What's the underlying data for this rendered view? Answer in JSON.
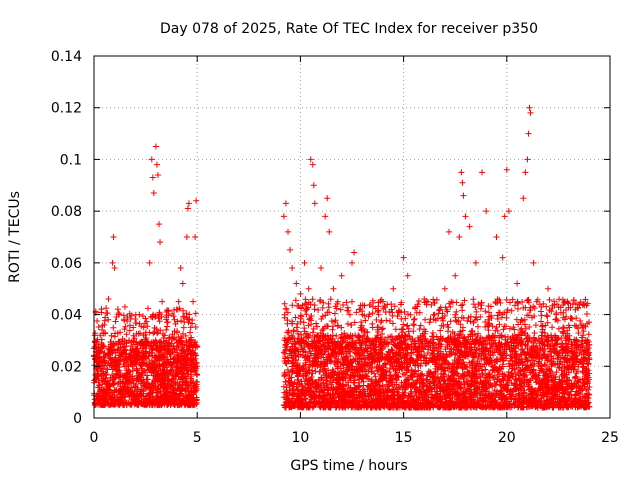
{
  "chart_data": {
    "type": "scatter",
    "title": "Day 078 of 2025, Rate Of TEC Index for receiver p350",
    "xlabel": "GPS time / hours",
    "ylabel": "ROTI / TECUs",
    "xlim": [
      0,
      25
    ],
    "ylim": [
      0,
      0.14
    ],
    "xticks": [
      0,
      5,
      10,
      15,
      20,
      25
    ],
    "xtick_labels": [
      "0",
      "5",
      "10",
      "15",
      "20",
      "25"
    ],
    "yticks": [
      0,
      0.02,
      0.04,
      0.06,
      0.08,
      0.1,
      0.12,
      0.14
    ],
    "ytick_labels": [
      "0",
      "0.02",
      "0.04",
      "0.06",
      "0.08",
      "0.1",
      "0.12",
      "0.14"
    ],
    "grid": true,
    "marker": "plus",
    "color": "#ff0000",
    "data_gap_hours": [
      5.0,
      9.2
    ],
    "series": [
      {
        "name": "ROTI",
        "points": [
          [
            0.1,
            0.015
          ],
          [
            0.2,
            0.022
          ],
          [
            0.3,
            0.032
          ],
          [
            0.4,
            0.018
          ],
          [
            0.5,
            0.036
          ],
          [
            0.6,
            0.012
          ],
          [
            0.7,
            0.046
          ],
          [
            0.8,
            0.026
          ],
          [
            0.9,
            0.06
          ],
          [
            0.95,
            0.07
          ],
          [
            1.0,
            0.058
          ],
          [
            1.1,
            0.02
          ],
          [
            1.2,
            0.04
          ],
          [
            1.3,
            0.014
          ],
          [
            1.5,
            0.043
          ],
          [
            1.7,
            0.03
          ],
          [
            1.9,
            0.035
          ],
          [
            2.0,
            0.012
          ],
          [
            2.2,
            0.04
          ],
          [
            2.4,
            0.028
          ],
          [
            2.6,
            0.02
          ],
          [
            2.7,
            0.06
          ],
          [
            2.8,
            0.1
          ],
          [
            2.85,
            0.093
          ],
          [
            2.9,
            0.087
          ],
          [
            3.0,
            0.105
          ],
          [
            3.05,
            0.098
          ],
          [
            3.1,
            0.094
          ],
          [
            3.15,
            0.075
          ],
          [
            3.2,
            0.068
          ],
          [
            3.3,
            0.045
          ],
          [
            3.5,
            0.03
          ],
          [
            3.7,
            0.025
          ],
          [
            3.9,
            0.038
          ],
          [
            4.1,
            0.045
          ],
          [
            4.2,
            0.058
          ],
          [
            4.3,
            0.052
          ],
          [
            4.5,
            0.07
          ],
          [
            4.55,
            0.081
          ],
          [
            4.6,
            0.083
          ],
          [
            4.7,
            0.03
          ],
          [
            4.8,
            0.045
          ],
          [
            4.9,
            0.07
          ],
          [
            4.95,
            0.084
          ],
          [
            5.0,
            0.02
          ],
          [
            9.2,
            0.078
          ],
          [
            9.3,
            0.083
          ],
          [
            9.4,
            0.072
          ],
          [
            9.5,
            0.065
          ],
          [
            9.6,
            0.058
          ],
          [
            9.8,
            0.052
          ],
          [
            10.0,
            0.048
          ],
          [
            10.2,
            0.06
          ],
          [
            10.4,
            0.05
          ],
          [
            10.5,
            0.1
          ],
          [
            10.6,
            0.098
          ],
          [
            10.65,
            0.09
          ],
          [
            10.7,
            0.083
          ],
          [
            11.0,
            0.058
          ],
          [
            11.2,
            0.078
          ],
          [
            11.3,
            0.085
          ],
          [
            11.4,
            0.072
          ],
          [
            11.6,
            0.05
          ],
          [
            12.0,
            0.055
          ],
          [
            12.4,
            0.04
          ],
          [
            12.5,
            0.06
          ],
          [
            12.6,
            0.064
          ],
          [
            13.0,
            0.04
          ],
          [
            13.5,
            0.035
          ],
          [
            14.0,
            0.045
          ],
          [
            14.5,
            0.05
          ],
          [
            15.0,
            0.062
          ],
          [
            15.2,
            0.055
          ],
          [
            15.5,
            0.038
          ],
          [
            16.0,
            0.046
          ],
          [
            16.5,
            0.04
          ],
          [
            17.0,
            0.05
          ],
          [
            17.2,
            0.072
          ],
          [
            17.5,
            0.055
          ],
          [
            17.7,
            0.07
          ],
          [
            17.8,
            0.095
          ],
          [
            17.85,
            0.091
          ],
          [
            17.9,
            0.086
          ],
          [
            18.0,
            0.078
          ],
          [
            18.2,
            0.074
          ],
          [
            18.5,
            0.06
          ],
          [
            18.8,
            0.095
          ],
          [
            19.0,
            0.08
          ],
          [
            19.5,
            0.07
          ],
          [
            19.8,
            0.062
          ],
          [
            19.9,
            0.078
          ],
          [
            20.0,
            0.096
          ],
          [
            20.1,
            0.08
          ],
          [
            20.5,
            0.052
          ],
          [
            20.8,
            0.085
          ],
          [
            20.9,
            0.095
          ],
          [
            21.0,
            0.1
          ],
          [
            21.05,
            0.11
          ],
          [
            21.1,
            0.12
          ],
          [
            21.15,
            0.118
          ],
          [
            21.3,
            0.06
          ],
          [
            21.6,
            0.044
          ],
          [
            22.0,
            0.05
          ],
          [
            22.4,
            0.04
          ],
          [
            22.8,
            0.045
          ],
          [
            23.2,
            0.044
          ],
          [
            23.6,
            0.036
          ],
          [
            24.0,
            0.012
          ]
        ],
        "dense_band": [
          {
            "from": 0.0,
            "to": 5.0,
            "low": 0.005,
            "high": 0.03
          },
          {
            "from": 9.2,
            "to": 24.0,
            "low": 0.004,
            "high": 0.032
          }
        ]
      }
    ]
  }
}
